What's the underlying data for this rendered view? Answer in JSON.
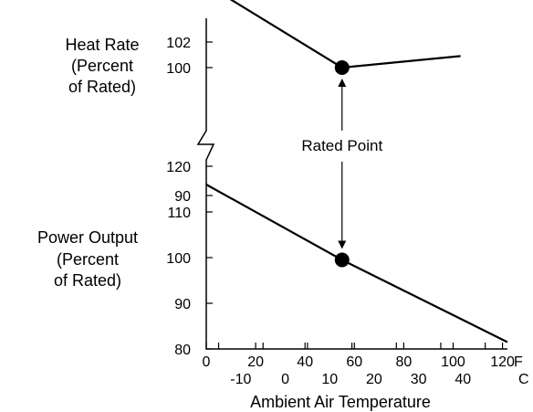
{
  "chart_data": [
    {
      "type": "line",
      "ylabel": [
        "Heat Rate",
        "(Percent",
        "of Rated)"
      ],
      "ylim": [
        88,
        102
      ],
      "yticks": [
        90,
        100,
        102
      ],
      "x": [
        0,
        55,
        103
      ],
      "series": [
        {
          "name": "",
          "values": [
            106.5,
            100,
            100.9
          ]
        }
      ],
      "markers": [
        {
          "x": 55,
          "y": 100
        }
      ]
    },
    {
      "type": "line",
      "ylabel": [
        "Power Output",
        "(Percent",
        "of Rated)"
      ],
      "ylim": [
        80,
        122
      ],
      "yticks": [
        80,
        90,
        100,
        110,
        120
      ],
      "x": [
        0,
        55,
        122
      ],
      "series": [
        {
          "name": "",
          "values": [
            116,
            99.5,
            81.5
          ]
        }
      ],
      "markers": [
        {
          "x": 55,
          "y": 99.5
        }
      ]
    }
  ],
  "x_axis": {
    "xlim": [
      0,
      122
    ],
    "f_ticks": [
      "0",
      "20",
      "40",
      "60",
      "80",
      "100",
      "120"
    ],
    "f_unit": "F",
    "c_ticks": [
      "-10",
      "0",
      "10",
      "20",
      "30",
      "40"
    ],
    "c_unit": "C",
    "label": "Ambient Air Temperature"
  },
  "annotation": {
    "text": "Rated Point"
  }
}
